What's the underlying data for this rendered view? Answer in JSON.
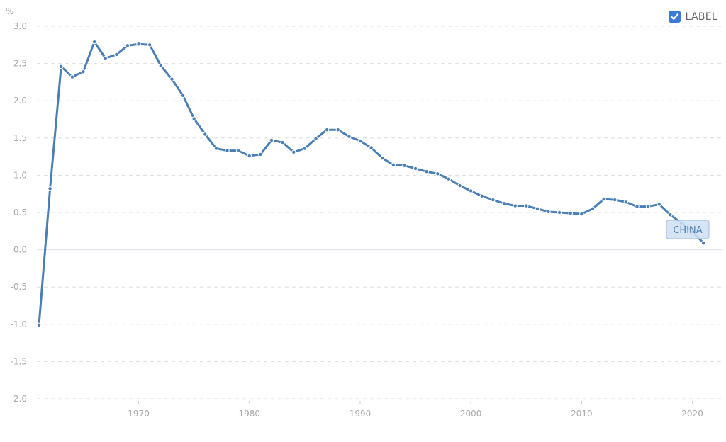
{
  "legend": {
    "label": "LABEL",
    "checked": true
  },
  "colors": {
    "line": "#4a7fb5",
    "grid": "#dddddd",
    "zero_line": "#e4e8ee",
    "tick_text": "#aaaaaa",
    "label_bg": "#cfe0f3",
    "label_border": "#9dbde0",
    "label_text": "#4a7fb5",
    "checkbox": "#3a7bd5"
  },
  "series_label": "CHINA",
  "chart_data": {
    "type": "line",
    "title": "",
    "xlabel": "",
    "ylabel": "%",
    "ylim": [
      -2.0,
      3.0
    ],
    "xlim": [
      1961,
      2021
    ],
    "grid": true,
    "legend_position": "top-right",
    "y_ticks": [
      "3.0",
      "2.5",
      "2.0",
      "1.5",
      "1.0",
      "0.5",
      "0.0",
      "-0.5",
      "-1.0",
      "-1.5",
      "-2.0"
    ],
    "x_ticks": [
      "1970",
      "1980",
      "1990",
      "2000",
      "2010",
      "2020"
    ],
    "series": [
      {
        "name": "CHINA",
        "x": [
          1961,
          1962,
          1963,
          1964,
          1965,
          1966,
          1967,
          1968,
          1969,
          1970,
          1971,
          1972,
          1973,
          1974,
          1975,
          1976,
          1977,
          1978,
          1979,
          1980,
          1981,
          1982,
          1983,
          1984,
          1985,
          1986,
          1987,
          1988,
          1989,
          1990,
          1991,
          1992,
          1993,
          1994,
          1995,
          1996,
          1997,
          1998,
          1999,
          2000,
          2001,
          2002,
          2003,
          2004,
          2005,
          2006,
          2007,
          2008,
          2009,
          2010,
          2011,
          2012,
          2013,
          2014,
          2015,
          2016,
          2017,
          2018,
          2019,
          2020,
          2021
        ],
        "values": [
          -1.01,
          0.82,
          2.46,
          2.32,
          2.39,
          2.79,
          2.57,
          2.62,
          2.74,
          2.76,
          2.75,
          2.47,
          2.29,
          2.07,
          1.76,
          1.55,
          1.36,
          1.33,
          1.33,
          1.26,
          1.28,
          1.47,
          1.44,
          1.31,
          1.36,
          1.49,
          1.61,
          1.61,
          1.52,
          1.46,
          1.37,
          1.23,
          1.14,
          1.13,
          1.09,
          1.05,
          1.02,
          0.95,
          0.86,
          0.79,
          0.72,
          0.67,
          0.62,
          0.59,
          0.59,
          0.55,
          0.51,
          0.5,
          0.49,
          0.48,
          0.55,
          0.68,
          0.67,
          0.64,
          0.58,
          0.58,
          0.61,
          0.47,
          0.36,
          0.24,
          0.09
        ]
      }
    ]
  }
}
